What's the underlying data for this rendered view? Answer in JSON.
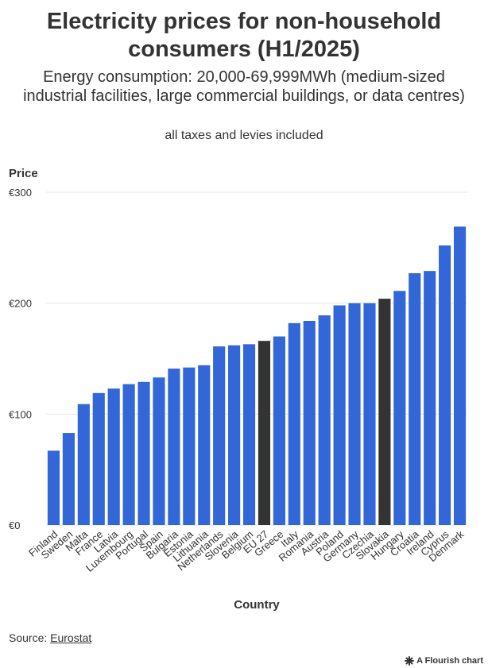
{
  "header": {
    "title": "Electricity prices for non-household consumers (H1/2025)",
    "subtitle": "Energy consumption: 20,000-69,999MWh (medium-sized industrial facilities, large commercial buildings, or data centres)",
    "note": "all taxes and levies included"
  },
  "footer": {
    "source_prefix": "Source: ",
    "source_link": "Eurostat",
    "credit": "A Flourish chart"
  },
  "colors": {
    "bar": "#3366d6",
    "highlight": "#333333",
    "grid": "#e6e6e6",
    "text": "#333333"
  },
  "chart_data": {
    "type": "bar",
    "title": "Electricity prices for non-household consumers (H1/2025)",
    "xlabel": "Country",
    "ylabel": "Price",
    "ylim": [
      0,
      300
    ],
    "yticks": [
      0,
      100,
      200,
      300
    ],
    "ytick_labels": [
      "€0",
      "€100",
      "€200",
      "€300"
    ],
    "grid": true,
    "categories": [
      "Finland",
      "Sweden",
      "Malta",
      "France",
      "Latvia",
      "Luxembourg",
      "Portugal",
      "Spain",
      "Bulgaria",
      "Estonia",
      "Lithuania",
      "Netherlands",
      "Slovenia",
      "Belgium",
      "EU 27",
      "Greece",
      "Italy",
      "Romania",
      "Austria",
      "Poland",
      "Germany",
      "Czechia",
      "Slovakia",
      "Hungary",
      "Croatia",
      "Ireland",
      "Cyprus",
      "Denmark"
    ],
    "values": [
      67,
      83,
      109,
      119,
      123,
      127,
      129,
      133,
      141,
      142,
      144,
      161,
      162,
      163,
      166,
      170,
      182,
      184,
      189,
      198,
      200,
      200,
      204,
      211,
      227,
      229,
      252,
      269
    ],
    "highlighted": [
      "EU 27",
      "Slovakia"
    ]
  }
}
